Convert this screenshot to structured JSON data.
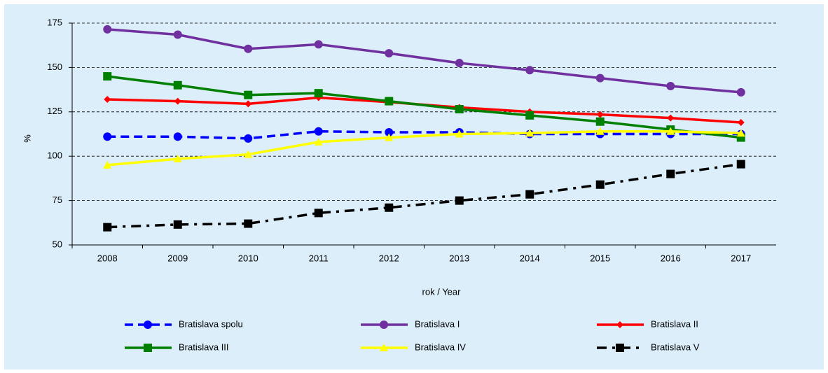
{
  "chart_data": {
    "type": "line",
    "categories": [
      "2008",
      "2009",
      "2010",
      "2011",
      "2012",
      "2013",
      "2014",
      "2015",
      "2016",
      "2017"
    ],
    "ylabel": "%",
    "xlabel": "rok / Year",
    "ylim": [
      50,
      175
    ],
    "yticks": [
      50,
      75,
      100,
      125,
      150,
      175
    ],
    "grid": true,
    "series": [
      {
        "name": "Bratislava spolu",
        "color": "#0000ff",
        "line_style": "dashed",
        "marker": "circle",
        "values": [
          111,
          111,
          110,
          114,
          113.5,
          113.5,
          112.5,
          112.5,
          112.5,
          112.5
        ]
      },
      {
        "name": "Bratislava I",
        "color": "#7030a0",
        "line_style": "solid",
        "marker": "circle",
        "values": [
          171.5,
          168.5,
          160.5,
          163,
          158,
          152.5,
          148.5,
          144,
          139.5,
          136
        ]
      },
      {
        "name": "Bratislava II",
        "color": "#ff0000",
        "line_style": "solid",
        "marker": "diamond",
        "values": [
          132,
          131,
          129.5,
          133,
          130.5,
          127.5,
          125,
          123.5,
          121.5,
          119
        ]
      },
      {
        "name": "Bratislava III",
        "color": "#008000",
        "line_style": "solid",
        "marker": "square",
        "values": [
          145,
          140,
          134.5,
          135.5,
          131,
          126.5,
          123,
          119.5,
          115,
          110.5
        ]
      },
      {
        "name": "Bratislava IV",
        "color": "#ffff00",
        "line_style": "solid",
        "marker": "triangle",
        "values": [
          95,
          98.5,
          101,
          108,
          110.5,
          112.5,
          113,
          114,
          114,
          113
        ]
      },
      {
        "name": "Bratislava V",
        "color": "#000000",
        "line_style": "dashdot",
        "marker": "square",
        "values": [
          60,
          61.5,
          62,
          68,
          71,
          75,
          78.5,
          84,
          90,
          95.5
        ]
      }
    ]
  }
}
